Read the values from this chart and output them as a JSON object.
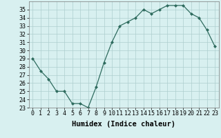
{
  "x": [
    0,
    1,
    2,
    3,
    4,
    5,
    6,
    7,
    8,
    9,
    10,
    11,
    12,
    13,
    14,
    15,
    16,
    17,
    18,
    19,
    20,
    21,
    22,
    23
  ],
  "y": [
    29,
    27.5,
    26.5,
    25,
    25,
    23.5,
    23.5,
    23,
    25.5,
    28.5,
    31,
    33,
    33.5,
    34,
    35,
    34.5,
    35,
    35.5,
    35.5,
    35.5,
    34.5,
    34,
    32.5,
    30.5
  ],
  "title": "",
  "xlabel": "Humidex (Indice chaleur)",
  "ylabel": "",
  "ylim": [
    23,
    36
  ],
  "xlim": [
    -0.5,
    23.5
  ],
  "yticks": [
    23,
    24,
    25,
    26,
    27,
    28,
    29,
    30,
    31,
    32,
    33,
    34,
    35
  ],
  "xticks": [
    0,
    1,
    2,
    3,
    4,
    5,
    6,
    7,
    8,
    9,
    10,
    11,
    12,
    13,
    14,
    15,
    16,
    17,
    18,
    19,
    20,
    21,
    22,
    23
  ],
  "line_color": "#2e6b5e",
  "marker": "D",
  "marker_size": 2.0,
  "line_width": 0.9,
  "bg_color": "#d8f0f0",
  "grid_color": "#aecece",
  "tick_fontsize": 6.0,
  "xlabel_fontsize": 7.5
}
